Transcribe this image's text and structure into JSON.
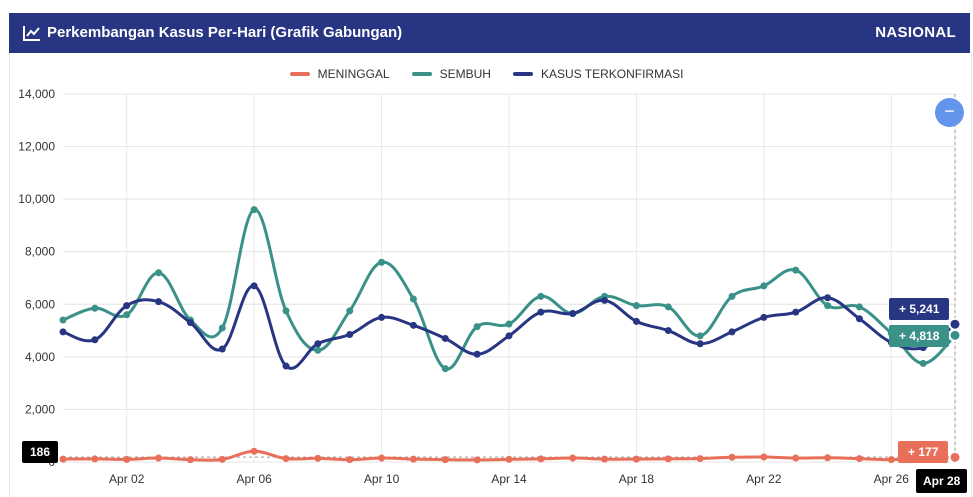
{
  "header": {
    "title": "Perkembangan Kasus Per-Hari (Grafik Gabungan)",
    "right": "NASIONAL"
  },
  "controls": {
    "toggle_symbol": "−"
  },
  "tooltips": {
    "confirmed": "+ 5,241",
    "recovered": "+ 4,818",
    "deaths": "+ 177",
    "crosshair_y": "186",
    "crosshair_x": "Apr 28"
  },
  "colors": {
    "deaths": "#e8705a",
    "recovered": "#3a9188",
    "confirmed": "#283582",
    "header": "#283582",
    "toggle": "#6495ed"
  },
  "chart_data": {
    "type": "line",
    "x": [
      "Mar 31",
      "Apr 01",
      "Apr 02",
      "Apr 03",
      "Apr 04",
      "Apr 05",
      "Apr 06",
      "Apr 07",
      "Apr 08",
      "Apr 09",
      "Apr 10",
      "Apr 11",
      "Apr 12",
      "Apr 13",
      "Apr 14",
      "Apr 15",
      "Apr 16",
      "Apr 17",
      "Apr 18",
      "Apr 19",
      "Apr 20",
      "Apr 21",
      "Apr 22",
      "Apr 23",
      "Apr 24",
      "Apr 25",
      "Apr 26",
      "Apr 27",
      "Apr 28"
    ],
    "tick_labels": [
      "Apr 02",
      "Apr 06",
      "Apr 10",
      "Apr 14",
      "Apr 18",
      "Apr 22",
      "Apr 26",
      "Apr 28"
    ],
    "ylim": [
      0,
      14000
    ],
    "yticks": [
      "0",
      "2,000",
      "4,000",
      "6,000",
      "8,000",
      "10,000",
      "12,000",
      "14,000"
    ],
    "grid": true,
    "legend_position": "top-center",
    "series": [
      {
        "name": "MENINGGAL",
        "values": [
          110,
          120,
          100,
          150,
          90,
          100,
          410,
          130,
          140,
          90,
          150,
          110,
          90,
          80,
          100,
          120,
          150,
          110,
          110,
          120,
          130,
          180,
          190,
          150,
          160,
          130,
          90,
          150,
          177
        ]
      },
      {
        "name": "SEMBUH",
        "values": [
          5400,
          5850,
          5600,
          7200,
          5400,
          5100,
          9600,
          5750,
          4250,
          5750,
          7600,
          6200,
          3550,
          5150,
          5250,
          6300,
          5650,
          6300,
          5950,
          5900,
          4800,
          6300,
          6700,
          7300,
          5950,
          5900,
          4900,
          3750,
          4818
        ]
      },
      {
        "name": "KASUS TERKONFIRMASI",
        "values": [
          4950,
          4650,
          5950,
          6100,
          5300,
          4300,
          6700,
          3650,
          4500,
          4850,
          5500,
          5200,
          4700,
          4100,
          4800,
          5700,
          5650,
          6150,
          5350,
          5000,
          4500,
          4950,
          5500,
          5700,
          6250,
          5450,
          4550,
          4350,
          5241
        ]
      }
    ]
  }
}
